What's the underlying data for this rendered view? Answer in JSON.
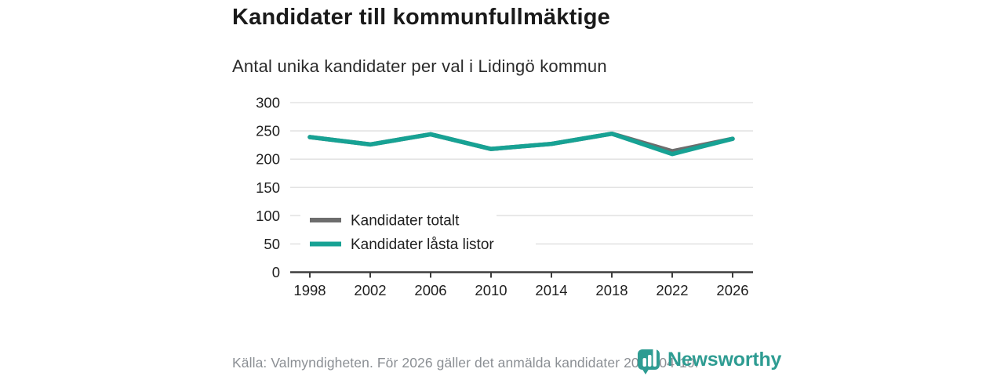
{
  "title": "Kandidater till kommunfullmäktige",
  "subtitle": "Antal unika kandidater per val i Lidingö kommun",
  "footer": {
    "source": "Källa: Valmyndigheten. För 2026 gäller det anmälda kandidater 2026-04-10."
  },
  "logo": {
    "wordmark": "Newsworthy",
    "icon": "bar-chart-speech-bubble-icon"
  },
  "colors": {
    "title_text": "#1a1a1a",
    "subtitle_text": "#2b2b2b",
    "axis": "#3d3d3d",
    "tick_label": "#1f1f1f",
    "grid": "#e3e3e3",
    "series_total": "#6d6d6d",
    "series_locked": "#17a294",
    "footer_text": "#8b8f94",
    "logo_teal": "#2e9c92"
  },
  "chart_data": {
    "type": "line",
    "x": [
      1998,
      2002,
      2006,
      2010,
      2014,
      2018,
      2022,
      2026
    ],
    "series": [
      {
        "name": "Kandidater totalt",
        "color_key": "series_total",
        "values": [
          239,
          226,
          244,
          218,
          227,
          245,
          214,
          236
        ]
      },
      {
        "name": "Kandidater låsta listor",
        "color_key": "series_locked",
        "values": [
          239,
          226,
          244,
          218,
          227,
          245,
          209,
          236
        ]
      }
    ],
    "ylim": [
      0,
      300
    ],
    "yticks": [
      0,
      50,
      100,
      150,
      200,
      250,
      300
    ],
    "grid": true,
    "legend_position": "inside-bottom-left",
    "xlabel": "",
    "ylabel": ""
  }
}
